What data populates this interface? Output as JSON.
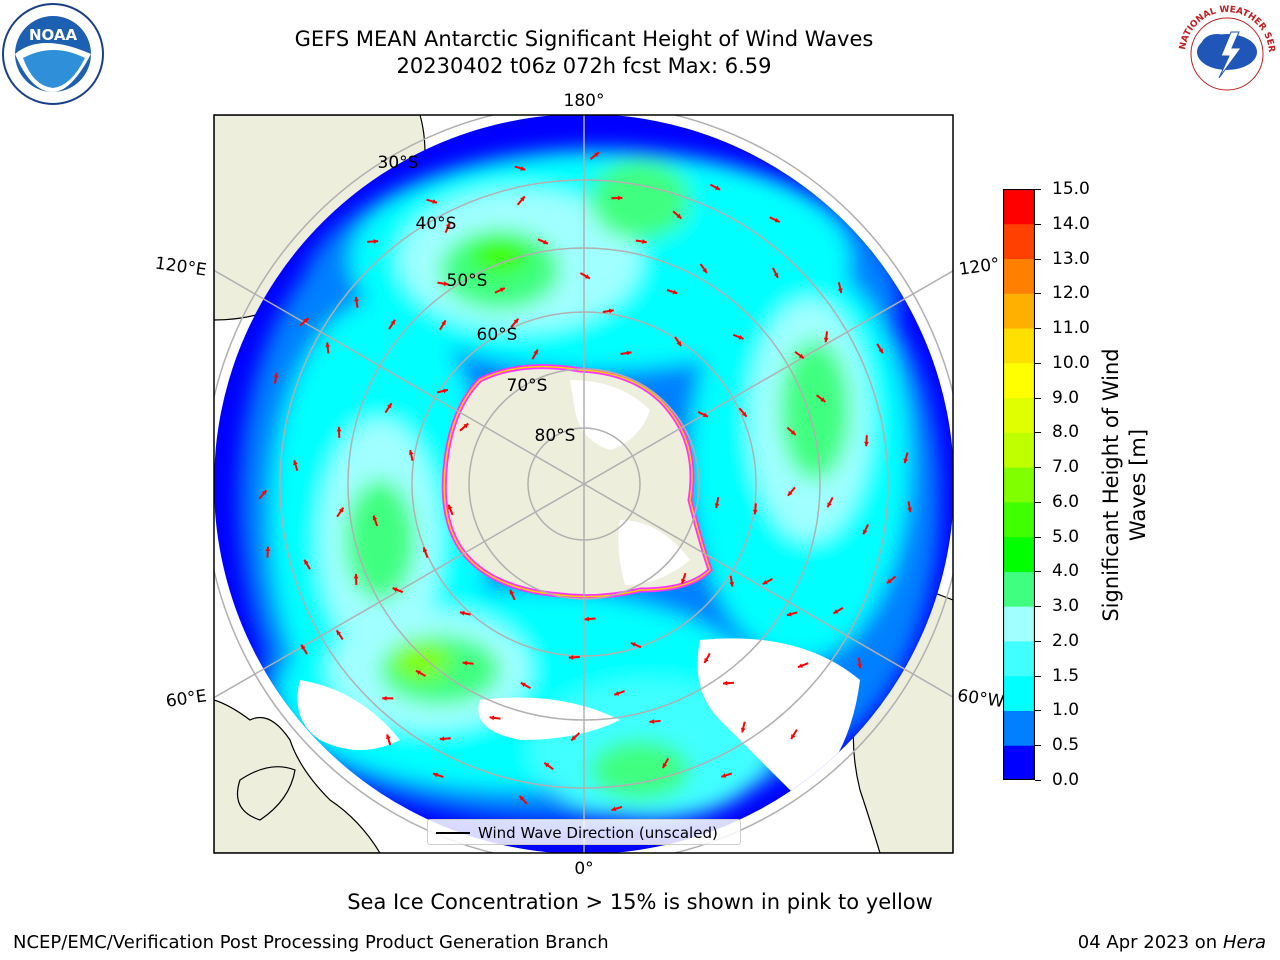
{
  "header": {
    "title_line1": "GEFS MEAN Antarctic Significant Height of Wind Waves",
    "title_line2": "20230402 t06z 072h fcst   Max: 6.59",
    "max_value": 6.59
  },
  "logos": {
    "left": {
      "name": "NOAA",
      "text": "NOAA"
    },
    "right": {
      "name": "National Weather Service",
      "text": "NATIONAL WEATHER SERVICE"
    }
  },
  "map": {
    "projection": "south-polar-stereographic",
    "longitude_labels": [
      "180°",
      "120°E",
      "120°",
      "60°E",
      "60°W",
      "0°"
    ],
    "latitude_labels": [
      "30°S",
      "40°S",
      "50°S",
      "60°S",
      "70°S",
      "80°S"
    ],
    "land_color": "#eeeedd",
    "ocean_base_color": "#0000ff",
    "vector_color": "#ff0000",
    "ice_edge_colors": [
      "#ff33ff",
      "#ffcc00"
    ],
    "legend_label": "Wind Wave Direction (unscaled)"
  },
  "colorbar": {
    "label": "Significant Height of Wind Waves [m]",
    "label_line1": "Significant Height of Wind",
    "label_line2": "Waves [m]",
    "bounds": [
      "0.0",
      "0.5",
      "1.0",
      "1.5",
      "2.0",
      "3.0",
      "4.0",
      "5.0",
      "6.0",
      "7.0",
      "8.0",
      "9.0",
      "10.0",
      "11.0",
      "12.0",
      "13.0",
      "14.0",
      "15.0"
    ],
    "colors": [
      "#0000ff",
      "#0080ff",
      "#00ffff",
      "#40ffff",
      "#a0ffff",
      "#40ff80",
      "#00ff00",
      "#40ff00",
      "#80ff00",
      "#c0ff00",
      "#e0ff00",
      "#ffff00",
      "#ffe000",
      "#ffb000",
      "#ff8000",
      "#ff4000",
      "#ff0000"
    ]
  },
  "annotation": "Sea Ice Concentration > 15% is shown in pink to yellow",
  "footer": {
    "left": "NCEP/EMC/Verification Post Processing Product Generation Branch",
    "right_date": "04 Apr 2023 on ",
    "right_machine": "Hera"
  }
}
